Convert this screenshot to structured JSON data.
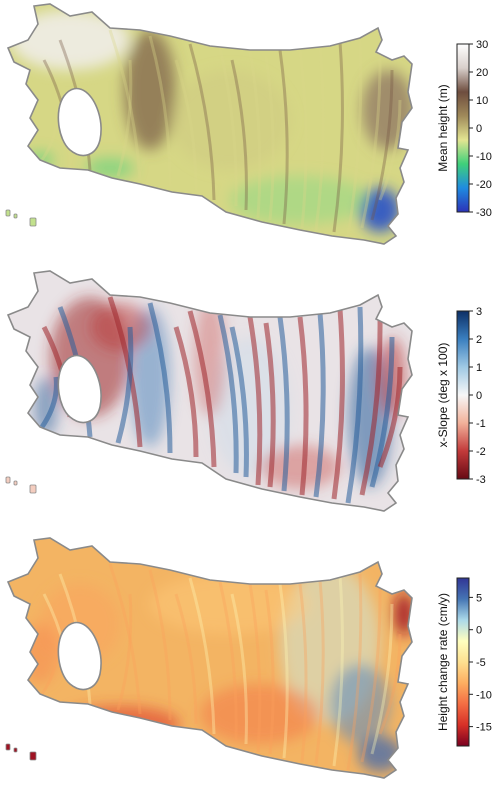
{
  "panels": [
    {
      "id": "mean-height",
      "colorbar_title": "Mean height (m)",
      "ticks": [
        "30",
        "20",
        "10",
        "0",
        "-10",
        "-20",
        "-30"
      ],
      "range": [
        -30,
        30
      ],
      "colormap": [
        "#2c32b8",
        "#1f8be0",
        "#3fd07a",
        "#e3e592",
        "#a08a5a",
        "#6e4d3e",
        "#d8cfcb",
        "#ffffff"
      ],
      "fill": "#d6d785"
    },
    {
      "id": "x-slope",
      "colorbar_title": "x-Slope (deg x 100)",
      "ticks": [
        "3",
        "2",
        "1",
        "0",
        "-1",
        "-2",
        "-3"
      ],
      "range": [
        -3,
        3
      ],
      "colormap": [
        "#670a14",
        "#c23a3a",
        "#f2b19a",
        "#f7f7f7",
        "#9fc9e4",
        "#3a7fbf",
        "#0d2f66"
      ],
      "fill": "#e9e3e6"
    },
    {
      "id": "height-change-rate",
      "colorbar_title": "Height change rate (cm/y)",
      "ticks": [
        "5",
        "0",
        "-5",
        "-10",
        "-15"
      ],
      "range": [
        -18,
        8
      ],
      "colormap": [
        "#7a0020",
        "#d73027",
        "#f46d43",
        "#fdae61",
        "#fee090",
        "#ffffbf",
        "#abd9e9",
        "#4575b4",
        "#313695"
      ],
      "fill": "#f3b463"
    }
  ]
}
